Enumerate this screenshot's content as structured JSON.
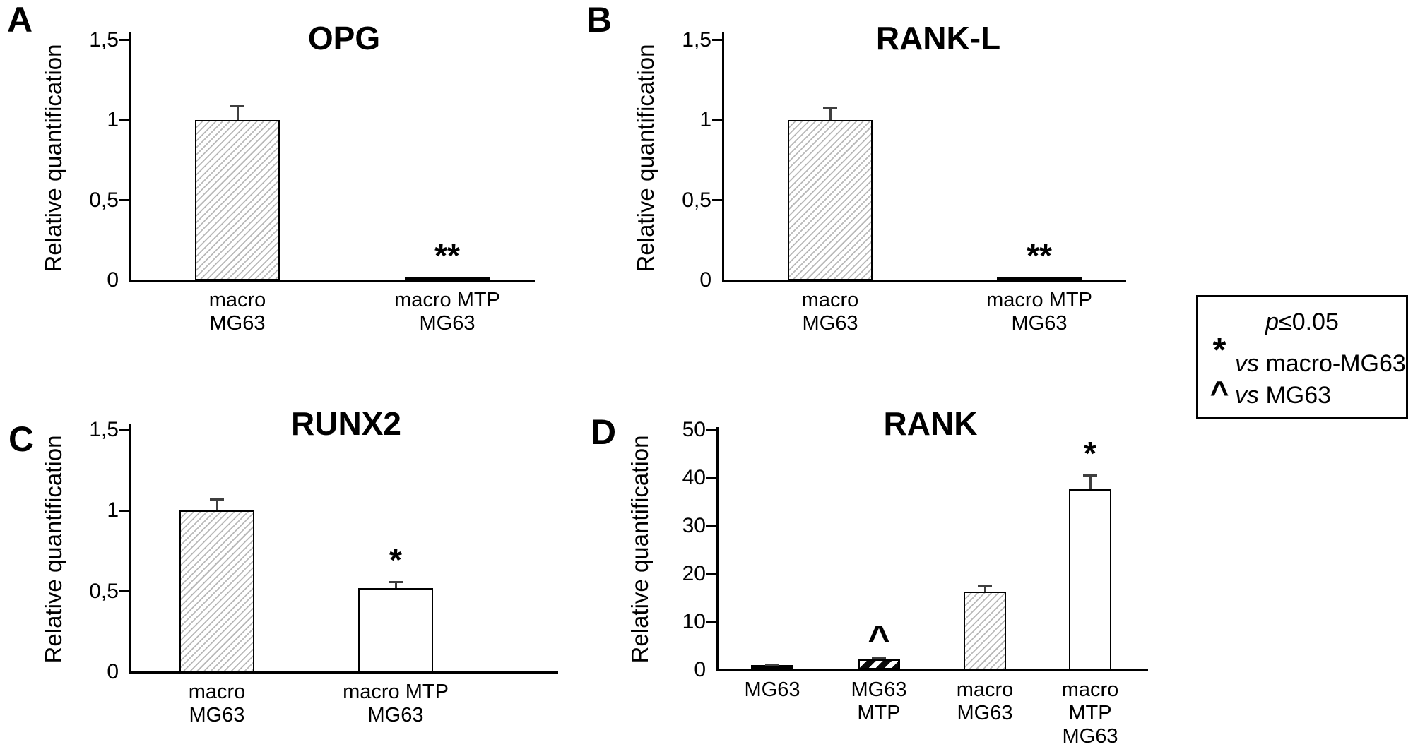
{
  "figure": {
    "background": "#ffffff",
    "ink_color": "#000000",
    "error_bar_color": "#3f3f3f",
    "hatch_line_color": "#b9b9b9"
  },
  "legend": {
    "threshold_italic": "p",
    "threshold_rest": "≤0.05",
    "items": [
      {
        "symbol": "*",
        "vs": "vs",
        "target": "macro-MG63"
      },
      {
        "symbol": "^",
        "vs": "vs",
        "target": "MG63"
      }
    ]
  },
  "chart_data": [
    {
      "id": "A",
      "panel_label": "A",
      "type": "bar",
      "title": "OPG",
      "xlabel": "",
      "ylabel": "Relative quantification",
      "ylim": [
        0,
        1.5
      ],
      "grid": false,
      "yticks": [
        0,
        0.5,
        1,
        1.5
      ],
      "ytick_labels": [
        "0",
        "0,5",
        "1",
        "1,5"
      ],
      "categories": [
        "macro MG63",
        "macro MTP MG63"
      ],
      "category_lines": [
        [
          "macro",
          "MG63"
        ],
        [
          "macro MTP",
          "MG63"
        ]
      ],
      "values": [
        1.0,
        0.01
      ],
      "errors": [
        0.09,
        0
      ],
      "annotations": [
        "",
        "**"
      ],
      "bar_styles": [
        "hatch-light",
        "solid-black"
      ]
    },
    {
      "id": "B",
      "panel_label": "B",
      "type": "bar",
      "title": "RANK-L",
      "xlabel": "",
      "ylabel": "Relative quantification",
      "ylim": [
        0,
        1.5
      ],
      "grid": false,
      "yticks": [
        0,
        0.5,
        1,
        1.5
      ],
      "ytick_labels": [
        "0",
        "0,5",
        "1",
        "1,5"
      ],
      "categories": [
        "macro MG63",
        "macro MTP MG63"
      ],
      "category_lines": [
        [
          "macro",
          "MG63"
        ],
        [
          "macro MTP",
          "MG63"
        ]
      ],
      "values": [
        1.0,
        0.015
      ],
      "errors": [
        0.08,
        0
      ],
      "annotations": [
        "",
        "**"
      ],
      "bar_styles": [
        "hatch-light",
        "white"
      ]
    },
    {
      "id": "C",
      "panel_label": "C",
      "type": "bar",
      "title": "RUNX2",
      "xlabel": "",
      "ylabel": "Relative quantification",
      "ylim": [
        0,
        1.5
      ],
      "grid": false,
      "yticks": [
        0,
        0.5,
        1,
        1.5
      ],
      "ytick_labels": [
        "0",
        "0,5",
        "1",
        "1,5"
      ],
      "categories": [
        "macro MG63",
        "macro MTP MG63"
      ],
      "category_lines": [
        [
          "macro",
          "MG63"
        ],
        [
          "macro MTP",
          "MG63"
        ]
      ],
      "values": [
        1.0,
        0.52
      ],
      "errors": [
        0.07,
        0.04
      ],
      "annotations": [
        "",
        "*"
      ],
      "bar_styles": [
        "hatch-light",
        "white"
      ]
    },
    {
      "id": "D",
      "panel_label": "D",
      "type": "bar",
      "title": "RANK",
      "xlabel": "",
      "ylabel": "Relative quantification",
      "ylim": [
        0,
        50
      ],
      "grid": false,
      "yticks": [
        0,
        10,
        20,
        30,
        40,
        50
      ],
      "ytick_labels": [
        "0",
        "10",
        "20",
        "30",
        "40",
        "50"
      ],
      "categories": [
        "MG63",
        "MG63 MTP",
        "macro MG63",
        "macro MTP MG63"
      ],
      "category_lines": [
        [
          "MG63"
        ],
        [
          "MG63",
          "MTP"
        ],
        [
          "macro",
          "MG63"
        ],
        [
          "macro",
          "MTP",
          "MG63"
        ]
      ],
      "values": [
        1.0,
        2.3,
        16.3,
        37.6
      ],
      "errors": [
        0.25,
        0.3,
        1.35,
        3.0
      ],
      "annotations": [
        "",
        "^",
        "",
        "*"
      ],
      "bar_styles": [
        "solid-black",
        "hatch-bold",
        "hatch-light",
        "white"
      ]
    }
  ]
}
